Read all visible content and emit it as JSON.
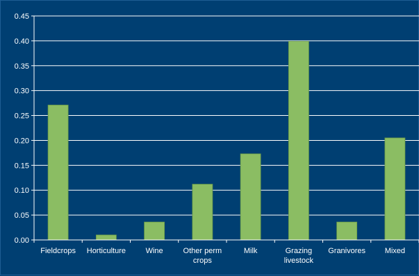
{
  "chart_data": {
    "type": "bar",
    "title": "",
    "xlabel": "",
    "ylabel": "",
    "ylim": [
      0,
      0.45
    ],
    "yticks": [
      "0.00",
      "0.05",
      "0.10",
      "0.15",
      "0.20",
      "0.25",
      "0.30",
      "0.35",
      "0.40",
      "0.45"
    ],
    "grid": true,
    "legend": "none",
    "categories": [
      [
        "Fieldcrops"
      ],
      [
        "Horticulture"
      ],
      [
        "Wine"
      ],
      [
        "Other perm",
        "crops"
      ],
      [
        "Milk"
      ],
      [
        "Grazing",
        "livestock"
      ],
      [
        "Granivores"
      ],
      [
        "Mixed"
      ]
    ],
    "values": [
      0.271,
      0.01,
      0.036,
      0.112,
      0.173,
      0.399,
      0.036,
      0.205
    ]
  },
  "colors": {
    "background": "#003f72",
    "bar_fill": "#8bbd63",
    "bar_stroke": "#6a9a47",
    "gridline": "#ffffff",
    "axis": "#ffffff",
    "text": "#ffffff"
  }
}
